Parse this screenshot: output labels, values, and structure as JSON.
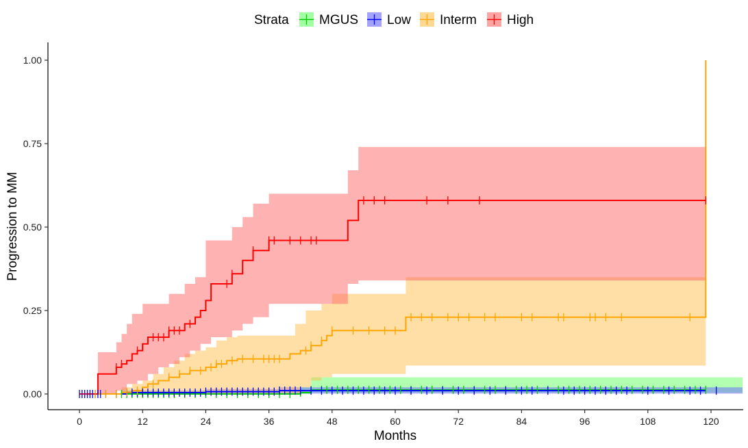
{
  "chart_data": {
    "type": "line",
    "subtype": "step-cumulative-incidence-with-confidence-bands",
    "xlabel": "Months",
    "ylabel": "Progression to MM",
    "xlim": [
      0,
      126
    ],
    "ylim": [
      0,
      1
    ],
    "x_ticks": [
      0,
      12,
      24,
      36,
      48,
      60,
      72,
      84,
      96,
      108,
      120
    ],
    "y_ticks": [
      0.0,
      0.25,
      0.5,
      0.75,
      1.0
    ],
    "y_tick_labels": [
      "0.00",
      "0.25",
      "0.50",
      "0.75",
      "1.00"
    ],
    "grid": false,
    "legend": {
      "title": "Strata",
      "placement": "top",
      "entries": [
        "MGUS",
        "Low",
        "Interm",
        "High"
      ]
    },
    "series": [
      {
        "name": "MGUS",
        "color": "#00cc00",
        "fill_color": "#66ff66",
        "steps": [
          [
            0,
            0
          ],
          [
            42,
            0.004
          ],
          [
            44,
            0.012
          ],
          [
            119,
            0.012
          ]
        ],
        "ci_lower": [
          [
            0,
            0
          ],
          [
            44,
            0.004
          ],
          [
            126,
            0.004
          ]
        ],
        "ci_upper": [
          [
            0,
            0
          ],
          [
            8,
            0.01
          ],
          [
            42,
            0.02
          ],
          [
            44,
            0.05
          ],
          [
            126,
            0.05
          ]
        ],
        "censor_times": [
          8,
          9,
          10,
          11,
          12,
          13,
          14,
          15,
          16,
          17,
          18,
          20,
          22,
          24,
          26,
          28,
          30,
          32,
          34,
          36,
          38,
          40,
          42,
          44,
          46,
          47,
          49,
          51,
          53,
          55,
          57,
          59,
          61,
          63,
          65,
          67,
          69,
          71,
          73,
          75,
          77,
          79,
          81,
          83,
          85,
          87,
          89,
          91,
          93,
          95,
          97,
          99,
          101,
          103,
          105,
          107,
          109,
          111,
          113,
          115,
          117,
          119
        ]
      },
      {
        "name": "Low",
        "color": "#0000ff",
        "fill_color": "#6666ff",
        "steps": [
          [
            0,
            0
          ],
          [
            9,
            0.004
          ],
          [
            24,
            0.007
          ],
          [
            38,
            0.01
          ],
          [
            119,
            0.01
          ]
        ],
        "ci_lower": [
          [
            0,
            0
          ],
          [
            8,
            0.001
          ],
          [
            126,
            0.001
          ]
        ],
        "ci_upper": [
          [
            0,
            0
          ],
          [
            8,
            0.01
          ],
          [
            24,
            0.015
          ],
          [
            38,
            0.02
          ],
          [
            126,
            0.02
          ]
        ],
        "censor_times": [
          0,
          0.5,
          1,
          1.5,
          2,
          2.5,
          3,
          3.5,
          4,
          5,
          7,
          9,
          10,
          11,
          12,
          13,
          14,
          15,
          16,
          17,
          18,
          19,
          20,
          21,
          22,
          23,
          24,
          25,
          26,
          27,
          28,
          29,
          30,
          31,
          32,
          33,
          34,
          35,
          36,
          37,
          38,
          39,
          40,
          41,
          42,
          44,
          46,
          48,
          50,
          52,
          54,
          56,
          58,
          60,
          63,
          66,
          69,
          72,
          75,
          78,
          81,
          84,
          86,
          89,
          92,
          94,
          96,
          98,
          100,
          102,
          104,
          108,
          112,
          116,
          118,
          121
        ]
      },
      {
        "name": "Interm",
        "color": "#ffa500",
        "fill_color": "#ffc04d",
        "steps": [
          [
            0,
            0
          ],
          [
            8,
            0.005
          ],
          [
            10,
            0.01
          ],
          [
            12,
            0.02
          ],
          [
            13,
            0.03
          ],
          [
            15,
            0.04
          ],
          [
            17,
            0.05
          ],
          [
            19,
            0.06
          ],
          [
            21,
            0.07
          ],
          [
            24,
            0.08
          ],
          [
            26,
            0.09
          ],
          [
            28,
            0.1
          ],
          [
            30,
            0.105
          ],
          [
            40,
            0.12
          ],
          [
            42,
            0.13
          ],
          [
            44,
            0.145
          ],
          [
            46,
            0.16
          ],
          [
            47,
            0.175
          ],
          [
            48,
            0.19
          ],
          [
            62,
            0.23
          ],
          [
            119,
            0.23
          ]
        ],
        "ci_lower": [
          [
            0,
            0
          ],
          [
            8,
            0
          ],
          [
            42,
            0.02
          ],
          [
            44,
            0.04
          ],
          [
            46,
            0.05
          ],
          [
            48,
            0.06
          ],
          [
            62,
            0.085
          ],
          [
            119,
            0.085
          ]
        ],
        "ci_upper": [
          [
            0,
            0
          ],
          [
            8,
            0.02
          ],
          [
            10,
            0.03
          ],
          [
            12,
            0.04
          ],
          [
            14,
            0.06
          ],
          [
            16,
            0.08
          ],
          [
            18,
            0.1
          ],
          [
            20,
            0.12
          ],
          [
            22,
            0.13
          ],
          [
            24,
            0.14
          ],
          [
            26,
            0.16
          ],
          [
            28,
            0.17
          ],
          [
            30,
            0.175
          ],
          [
            41,
            0.21
          ],
          [
            43,
            0.25
          ],
          [
            46,
            0.27
          ],
          [
            48,
            0.3
          ],
          [
            62,
            0.35
          ],
          [
            119,
            0.35
          ]
        ],
        "final_jump": [
          119,
          1.0
        ],
        "censor_times": [
          3,
          5,
          7,
          9,
          11,
          14,
          17,
          19,
          21,
          23,
          25,
          26,
          27,
          29,
          31,
          33,
          35,
          36,
          37,
          38,
          43,
          44,
          46,
          48,
          52,
          55,
          58,
          60,
          63,
          65,
          67,
          70,
          72,
          74,
          77,
          79,
          84,
          86,
          91,
          92,
          97,
          98,
          100,
          103,
          116
        ]
      },
      {
        "name": "High",
        "color": "#ff0000",
        "fill_color": "#ff6666",
        "steps": [
          [
            0,
            0
          ],
          [
            3.5,
            0.06
          ],
          [
            7,
            0.08
          ],
          [
            8,
            0.09
          ],
          [
            9,
            0.1
          ],
          [
            10,
            0.12
          ],
          [
            11,
            0.13
          ],
          [
            12,
            0.15
          ],
          [
            13,
            0.17
          ],
          [
            17,
            0.19
          ],
          [
            20,
            0.21
          ],
          [
            22,
            0.23
          ],
          [
            23,
            0.25
          ],
          [
            24,
            0.28
          ],
          [
            25,
            0.33
          ],
          [
            29,
            0.36
          ],
          [
            31,
            0.4
          ],
          [
            33,
            0.43
          ],
          [
            36,
            0.46
          ],
          [
            51,
            0.52
          ],
          [
            53,
            0.58
          ],
          [
            119,
            0.58
          ]
        ],
        "ci_lower": [
          [
            0,
            0
          ],
          [
            4,
            0
          ],
          [
            7,
            0.01
          ],
          [
            9,
            0.03
          ],
          [
            11,
            0.04
          ],
          [
            13,
            0.06
          ],
          [
            15,
            0.08
          ],
          [
            17,
            0.09
          ],
          [
            19,
            0.11
          ],
          [
            21,
            0.13
          ],
          [
            23,
            0.15
          ],
          [
            25,
            0.17
          ],
          [
            29,
            0.19
          ],
          [
            31,
            0.21
          ],
          [
            33,
            0.23
          ],
          [
            36,
            0.27
          ],
          [
            51,
            0.33
          ],
          [
            53,
            0.34
          ],
          [
            119,
            0.34
          ]
        ],
        "ci_upper": [
          [
            0,
            0
          ],
          [
            3.5,
            0.125
          ],
          [
            7,
            0.155
          ],
          [
            8,
            0.18
          ],
          [
            9,
            0.21
          ],
          [
            10,
            0.24
          ],
          [
            12,
            0.27
          ],
          [
            17,
            0.3
          ],
          [
            20,
            0.33
          ],
          [
            22,
            0.35
          ],
          [
            24,
            0.46
          ],
          [
            29,
            0.5
          ],
          [
            31,
            0.53
          ],
          [
            33,
            0.57
          ],
          [
            36,
            0.6
          ],
          [
            51,
            0.67
          ],
          [
            53,
            0.74
          ],
          [
            119,
            0.74
          ]
        ],
        "censor_times": [
          7,
          8,
          11,
          14,
          15,
          16,
          17,
          18,
          19,
          21,
          28,
          29,
          33,
          36,
          37,
          40,
          42,
          44,
          45,
          54,
          56,
          58,
          66,
          70,
          76,
          119
        ]
      }
    ]
  }
}
